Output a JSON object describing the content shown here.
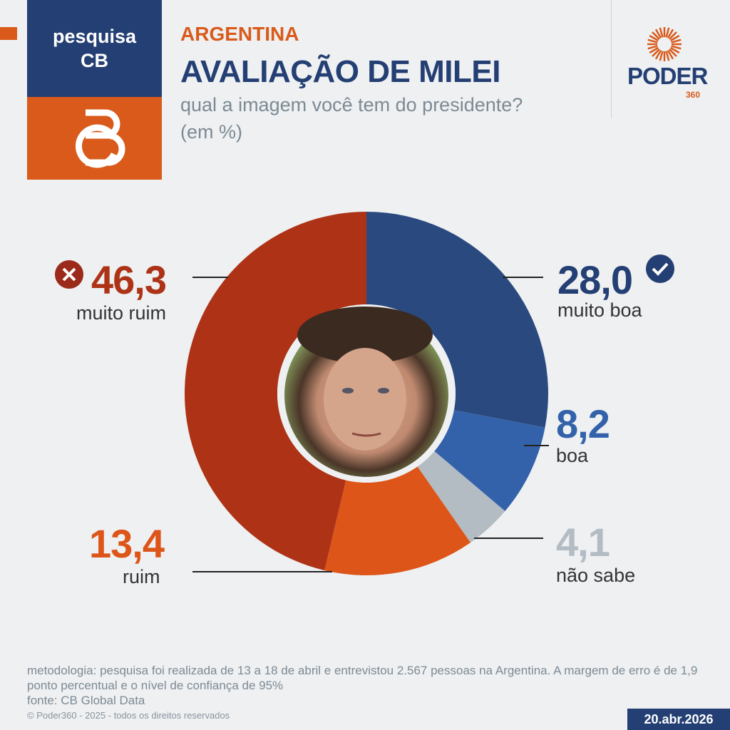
{
  "brand": {
    "line1": "pesquisa",
    "line2": "CB",
    "logo_text": "CB"
  },
  "header": {
    "country": "ARGENTINA",
    "title": "AVALIAÇÃO DE MILEI",
    "subtitle": "qual a imagem você tem do presidente?",
    "unit": "(em %)"
  },
  "publisher": {
    "name": "PODER",
    "suffix": "360"
  },
  "chart_data": {
    "type": "pie",
    "donut": true,
    "title": "AVALIAÇÃO DE MILEI",
    "slices": [
      {
        "label": "muito boa",
        "value": 28.0,
        "display": "28,0",
        "color": "#2a4a7f",
        "icon": "check-icon"
      },
      {
        "label": "boa",
        "value": 8.2,
        "display": "8,2",
        "color": "#3462aa"
      },
      {
        "label": "não sabe",
        "value": 4.1,
        "display": "4,1",
        "color": "#b3bbc3"
      },
      {
        "label": "ruim",
        "value": 13.4,
        "display": "13,4",
        "color": "#dd5518"
      },
      {
        "label": "muito ruim",
        "value": 46.3,
        "display": "46,3",
        "color": "#ae3316",
        "icon": "x-icon"
      }
    ]
  },
  "footer": {
    "methodology": "metodologia: pesquisa foi realizada de 13 a 18 de abril e entrevistou 2.567 pessoas na Argentina. A margem de erro é de 1,9 ponto percentual e o nível de confiança de 95%",
    "source": "fonte: CB Global Data",
    "copyright": "© Poder360 - 2025 - todos os direitos reservados",
    "date": "20.abr.2026"
  }
}
